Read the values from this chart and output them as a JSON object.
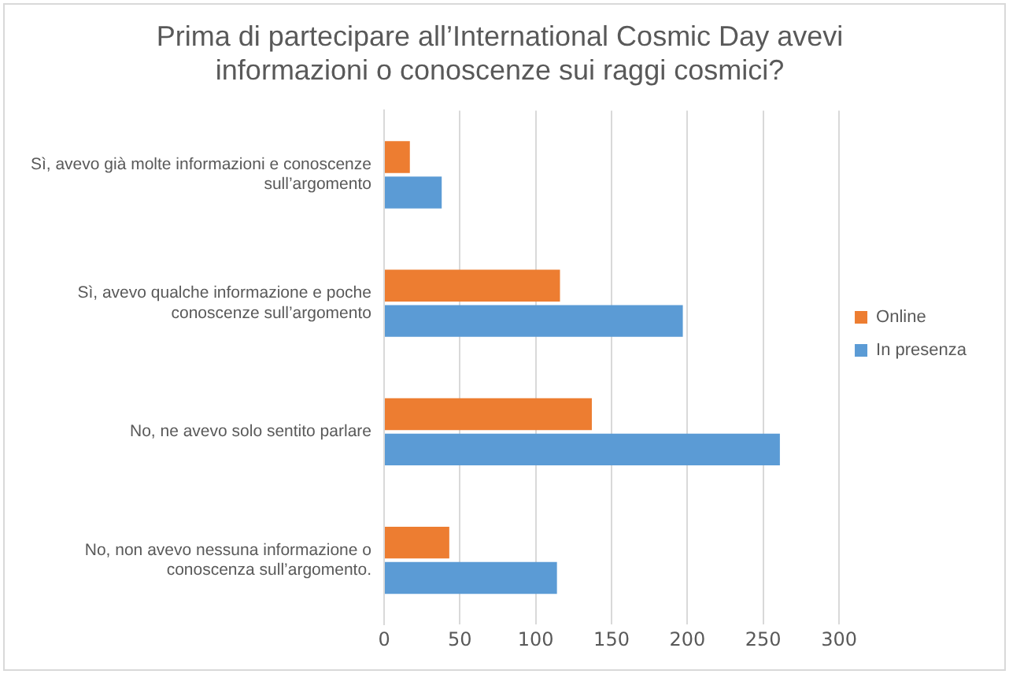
{
  "chart_data": {
    "type": "bar",
    "orientation": "horizontal",
    "title": "Prima di partecipare all’International Cosmic Day avevi informazioni o conoscenze sui raggi cosmici?",
    "categories": [
      "Sì, avevo già molte informazioni e conoscenze sull’argomento",
      "Sì, avevo qualche informazione e poche conoscenze sull’argomento",
      "No, ne avevo solo sentito parlare",
      "No, non avevo nessuna informazione o conoscenza sull’argomento."
    ],
    "series": [
      {
        "name": "Online",
        "color": "#ed7d31",
        "values": [
          17,
          116,
          137,
          43
        ]
      },
      {
        "name": "In presenza",
        "color": "#5b9bd5",
        "values": [
          38,
          197,
          261,
          114
        ]
      }
    ],
    "xlim": [
      0,
      300
    ],
    "xticks": [
      0,
      50,
      100,
      150,
      200,
      250,
      300
    ],
    "grid": "x",
    "legend": "right"
  }
}
